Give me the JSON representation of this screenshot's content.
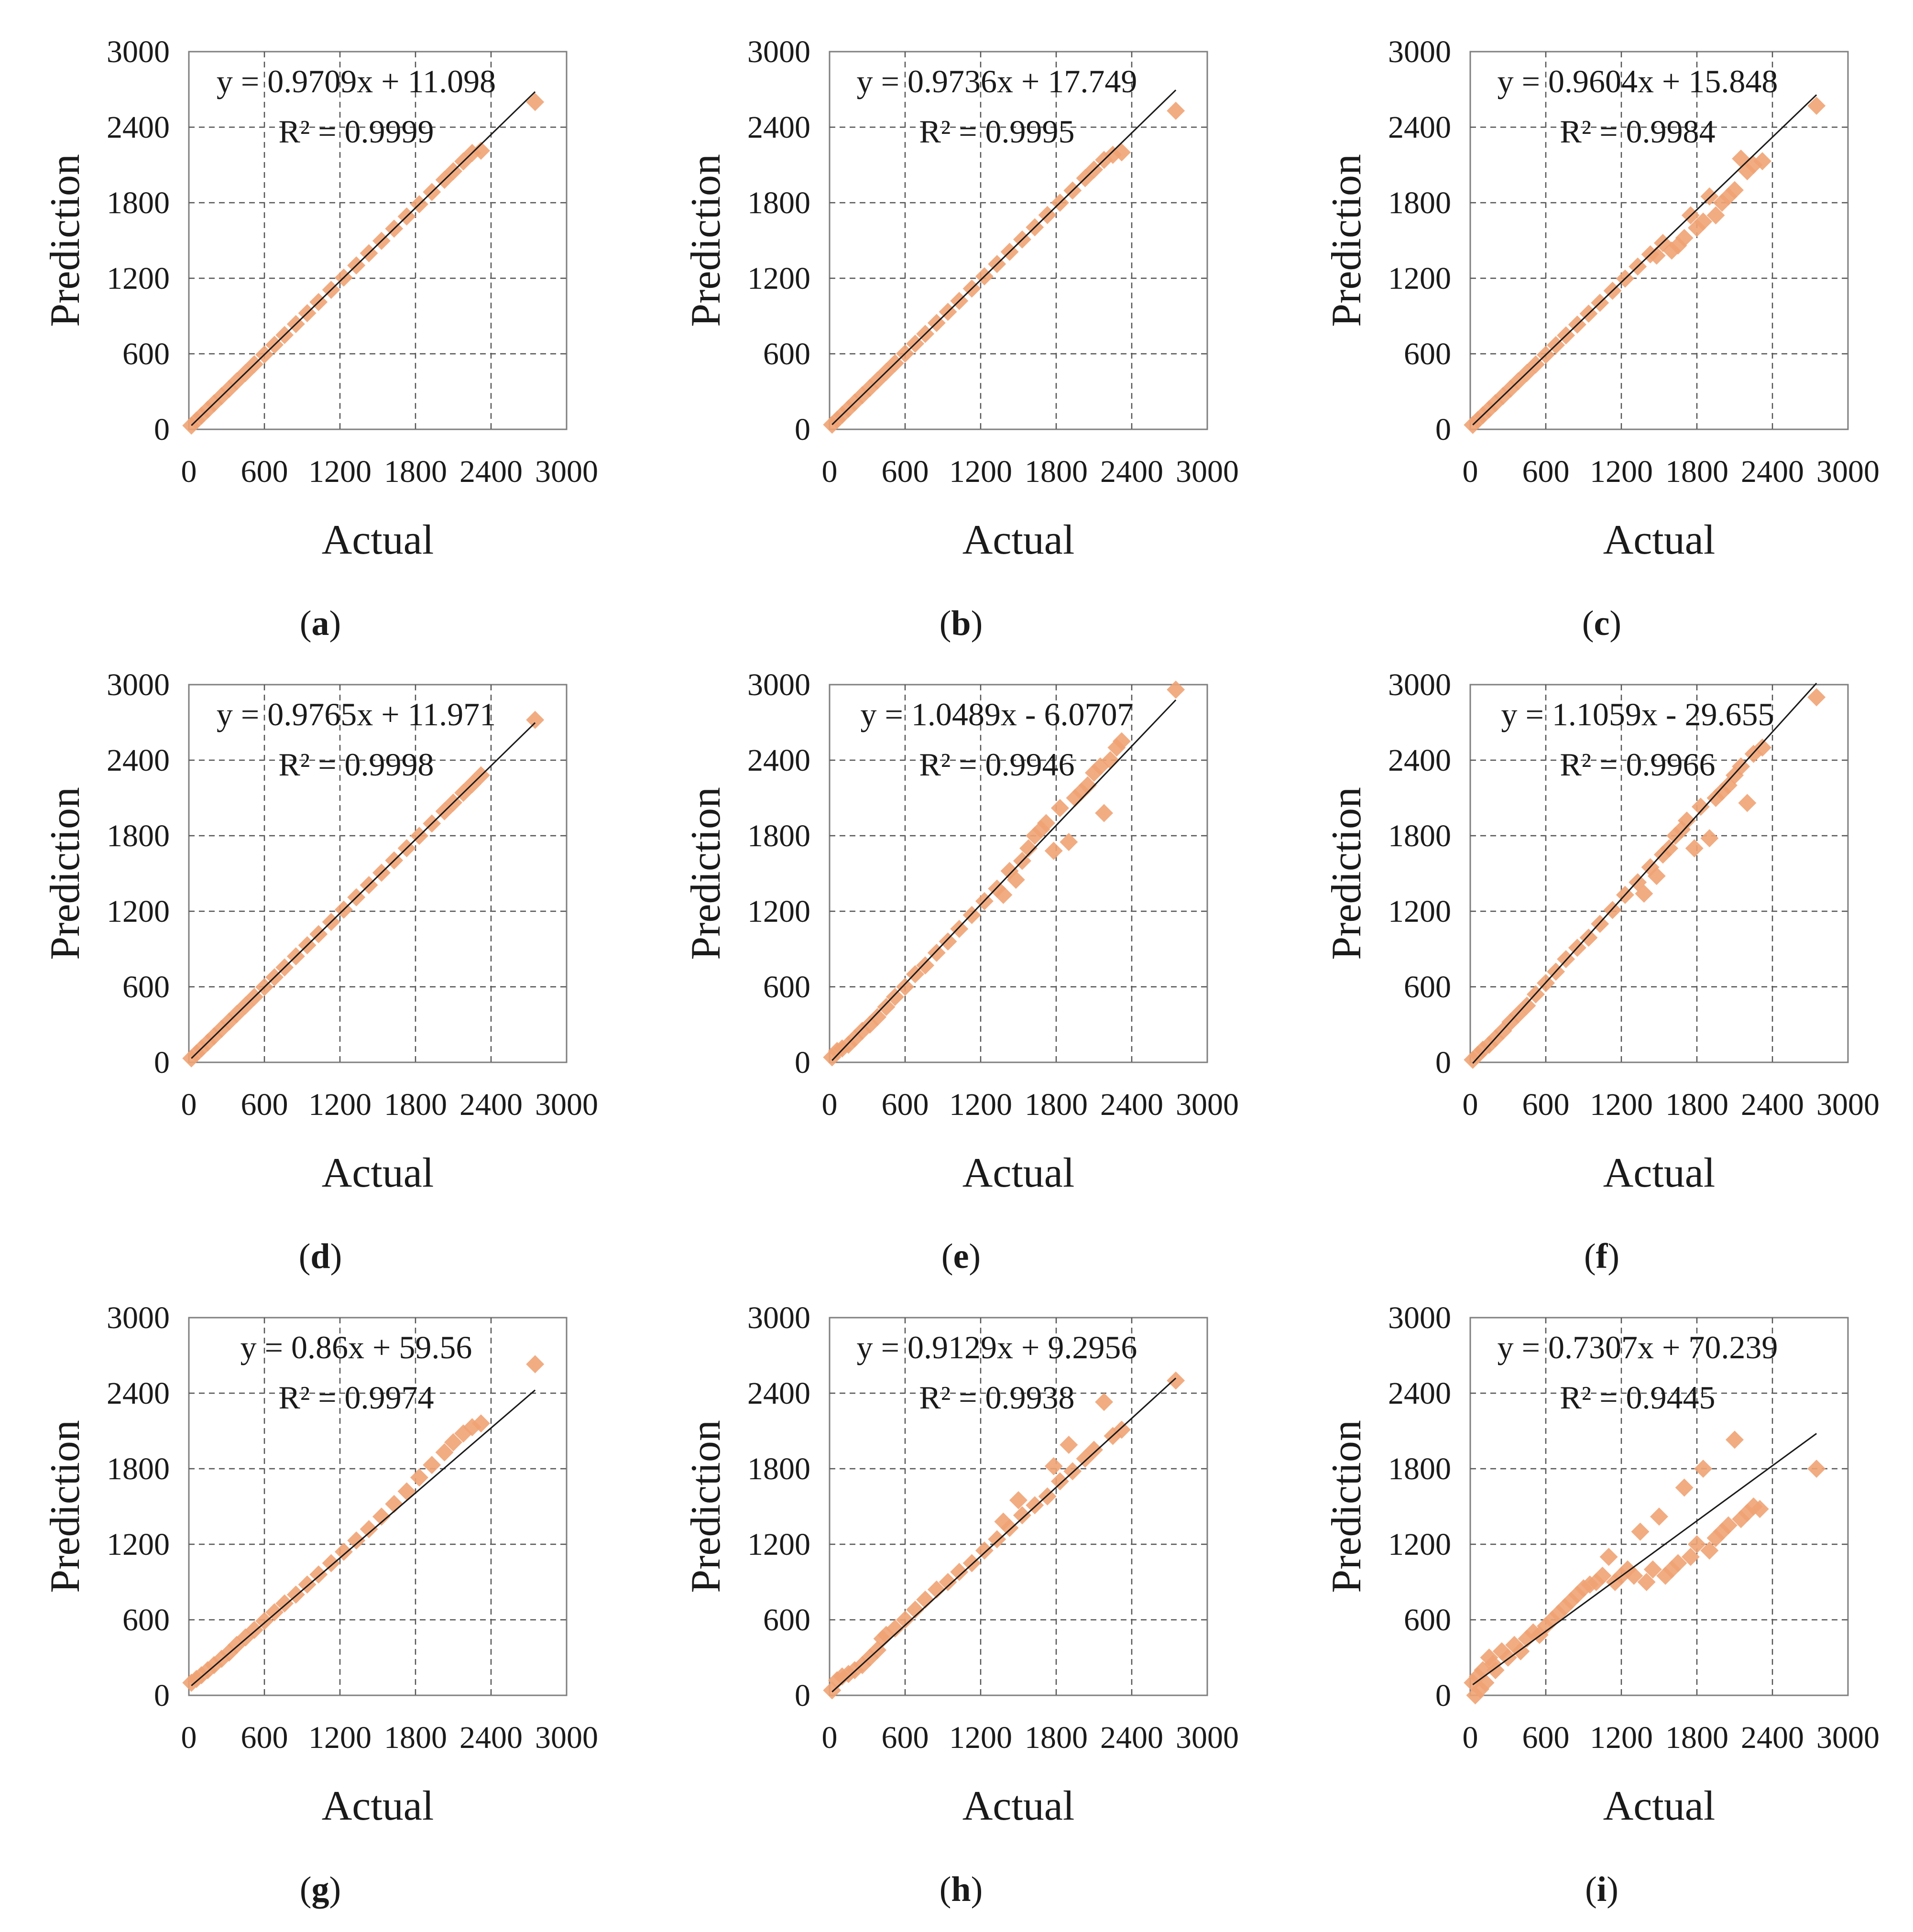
{
  "chart_data": [
    {
      "type": "scatter",
      "panel": "(a)",
      "panel_letter": "a",
      "xlabel": "Actual",
      "ylabel": "Prediction",
      "xlim": [
        0,
        3000
      ],
      "ylim": [
        0,
        3000
      ],
      "ticks": [
        "0",
        "600",
        "1200",
        "1800",
        "2400",
        "3000"
      ],
      "equation": "y = 0.9709x + 11.098",
      "r2": "R² = 0.9999",
      "grid": "dashed, both axes",
      "trendline": {
        "slope": 0.9709,
        "intercept": 11.098
      },
      "series": [
        {
          "color": "#f0a374",
          "marker": "diamond",
          "x": [
            20,
            60,
            100,
            150,
            200,
            260,
            320,
            380,
            450,
            520,
            600,
            680,
            760,
            850,
            940,
            1030,
            1130,
            1230,
            1330,
            1430,
            1530,
            1630,
            1730,
            1830,
            1930,
            2030,
            2100,
            2180,
            2250,
            2320,
            2750
          ],
          "y": [
            30,
            70,
            108,
            157,
            206,
            264,
            322,
            381,
            448,
            517,
            594,
            671,
            749,
            836,
            923,
            1011,
            1108,
            1205,
            1302,
            1399,
            1497,
            1594,
            1691,
            1788,
            1885,
            1982,
            2050,
            2128,
            2195,
            2213,
            2600
          ]
        }
      ]
    },
    {
      "type": "scatter",
      "panel": "(b)",
      "panel_letter": "b",
      "xlabel": "Actual",
      "ylabel": "Prediction",
      "xlim": [
        0,
        3000
      ],
      "ylim": [
        0,
        3000
      ],
      "ticks": [
        "0",
        "600",
        "1200",
        "1800",
        "2400",
        "3000"
      ],
      "equation": "y = 0.9736x + 17.749",
      "r2": "R² = 0.9995",
      "grid": "dashed, both axes",
      "trendline": {
        "slope": 0.9736,
        "intercept": 17.749
      },
      "series": [
        {
          "color": "#f0a374",
          "marker": "diamond",
          "x": [
            20,
            60,
            100,
            150,
            200,
            260,
            320,
            380,
            450,
            520,
            600,
            680,
            760,
            850,
            940,
            1030,
            1130,
            1230,
            1330,
            1430,
            1530,
            1630,
            1730,
            1830,
            1930,
            2030,
            2100,
            2180,
            2250,
            2320,
            2750
          ],
          "y": [
            37,
            76,
            115,
            164,
            213,
            271,
            329,
            388,
            456,
            525,
            602,
            680,
            758,
            845,
            933,
            1020,
            1118,
            1215,
            1313,
            1410,
            1508,
            1605,
            1702,
            1800,
            1897,
            1995,
            2063,
            2140,
            2180,
            2200,
            2530
          ]
        }
      ]
    },
    {
      "type": "scatter",
      "panel": "(c)",
      "panel_letter": "c",
      "xlabel": "Actual",
      "ylabel": "Prediction",
      "xlim": [
        0,
        3000
      ],
      "ylim": [
        0,
        3000
      ],
      "ticks": [
        "0",
        "600",
        "1200",
        "1800",
        "2400",
        "3000"
      ],
      "equation": "y = 0.9604x + 15.848",
      "r2": "R² = 0.9984",
      "grid": "dashed, both axes",
      "trendline": {
        "slope": 0.9604,
        "intercept": 15.848
      },
      "series": [
        {
          "color": "#f0a374",
          "marker": "diamond",
          "x": [
            20,
            60,
            100,
            150,
            200,
            260,
            320,
            380,
            450,
            520,
            600,
            680,
            760,
            850,
            940,
            1030,
            1130,
            1230,
            1330,
            1430,
            1480,
            1530,
            1600,
            1650,
            1700,
            1750,
            1800,
            1850,
            1900,
            1950,
            2000,
            2050,
            2100,
            2150,
            2200,
            2250,
            2320,
            2750
          ],
          "y": [
            35,
            74,
            112,
            160,
            208,
            265,
            323,
            381,
            448,
            515,
            592,
            669,
            746,
            832,
            919,
            1005,
            1101,
            1197,
            1293,
            1390,
            1380,
            1480,
            1420,
            1460,
            1520,
            1700,
            1600,
            1650,
            1850,
            1700,
            1800,
            1850,
            1900,
            2150,
            2050,
            2100,
            2130,
            2570
          ]
        }
      ]
    },
    {
      "type": "scatter",
      "panel": "(d)",
      "panel_letter": "d",
      "xlabel": "Actual",
      "ylabel": "Prediction",
      "xlim": [
        0,
        3000
      ],
      "ylim": [
        0,
        3000
      ],
      "ticks": [
        "0",
        "600",
        "1200",
        "1800",
        "2400",
        "3000"
      ],
      "equation": "y = 0.9765x + 11.971",
      "r2": "R² = 0.9998",
      "grid": "dashed, both axes",
      "trendline": {
        "slope": 0.9765,
        "intercept": 11.971
      },
      "series": [
        {
          "color": "#f0a374",
          "marker": "diamond",
          "x": [
            20,
            60,
            100,
            150,
            200,
            260,
            320,
            380,
            450,
            520,
            600,
            680,
            760,
            850,
            940,
            1030,
            1130,
            1230,
            1330,
            1430,
            1530,
            1630,
            1730,
            1830,
            1930,
            2030,
            2100,
            2180,
            2250,
            2320,
            2750
          ],
          "y": [
            32,
            71,
            110,
            158,
            207,
            266,
            324,
            383,
            451,
            520,
            598,
            676,
            754,
            842,
            930,
            1018,
            1115,
            1213,
            1311,
            1408,
            1506,
            1604,
            1701,
            1799,
            1897,
            1994,
            2063,
            2141,
            2209,
            2280,
            2720
          ]
        }
      ]
    },
    {
      "type": "scatter",
      "panel": "(e)",
      "panel_letter": "e",
      "xlabel": "Actual",
      "ylabel": "Prediction",
      "xlim": [
        0,
        3000
      ],
      "ylim": [
        0,
        3000
      ],
      "ticks": [
        "0",
        "600",
        "1200",
        "1800",
        "2400",
        "3000"
      ],
      "equation": "y = 1.0489x - 6.0707",
      "r2": "R² = 0.9946",
      "grid": "dashed, both axes",
      "trendline": {
        "slope": 1.0489,
        "intercept": -6.0707
      },
      "series": [
        {
          "color": "#f0a374",
          "marker": "diamond",
          "x": [
            20,
            60,
            100,
            150,
            200,
            260,
            320,
            380,
            450,
            520,
            600,
            680,
            760,
            850,
            940,
            1030,
            1130,
            1230,
            1330,
            1380,
            1430,
            1480,
            1530,
            1580,
            1630,
            1680,
            1720,
            1780,
            1830,
            1900,
            1950,
            2000,
            2050,
            2100,
            2150,
            2180,
            2230,
            2280,
            2320,
            2750
          ],
          "y": [
            40,
            90,
            110,
            140,
            190,
            250,
            300,
            360,
            440,
            520,
            600,
            700,
            770,
            870,
            960,
            1060,
            1170,
            1280,
            1380,
            1330,
            1520,
            1450,
            1600,
            1700,
            1800,
            1850,
            1900,
            1680,
            2020,
            1750,
            2100,
            2150,
            2200,
            2300,
            2350,
            1980,
            2400,
            2500,
            2550,
            2960
          ]
        }
      ]
    },
    {
      "type": "scatter",
      "panel": "(f)",
      "panel_letter": "f",
      "xlabel": "Actual",
      "ylabel": "Prediction",
      "xlim": [
        0,
        3000
      ],
      "ylim": [
        0,
        3000
      ],
      "ticks": [
        "0",
        "600",
        "1200",
        "1800",
        "2400",
        "3000"
      ],
      "equation": "y = 1.1059x - 29.655",
      "r2": "R² = 0.9966",
      "grid": "dashed, both axes",
      "trendline": {
        "slope": 1.1059,
        "intercept": -29.655
      },
      "series": [
        {
          "color": "#f0a374",
          "marker": "diamond",
          "x": [
            20,
            60,
            100,
            150,
            200,
            260,
            320,
            380,
            450,
            520,
            600,
            680,
            760,
            850,
            940,
            1030,
            1130,
            1230,
            1330,
            1380,
            1430,
            1480,
            1530,
            1580,
            1630,
            1680,
            1720,
            1780,
            1830,
            1900,
            1950,
            2000,
            2050,
            2100,
            2150,
            2200,
            2250,
            2320,
            2750
          ],
          "y": [
            20,
            60,
            100,
            140,
            190,
            250,
            320,
            380,
            450,
            540,
            630,
            720,
            820,
            910,
            990,
            1100,
            1210,
            1330,
            1430,
            1340,
            1550,
            1480,
            1650,
            1700,
            1800,
            1850,
            1920,
            1700,
            2030,
            1780,
            2100,
            2150,
            2200,
            2280,
            2350,
            2060,
            2450,
            2500,
            2900
          ]
        }
      ]
    },
    {
      "type": "scatter",
      "panel": "(g)",
      "panel_letter": "g",
      "xlabel": "Actual",
      "ylabel": "Prediction",
      "xlim": [
        0,
        3000
      ],
      "ylim": [
        0,
        3000
      ],
      "ticks": [
        "0",
        "600",
        "1200",
        "1800",
        "2400",
        "3000"
      ],
      "equation": "y = 0.86x + 59.56",
      "r2": "R² = 0.9974",
      "grid": "dashed, both axes",
      "trendline": {
        "slope": 0.86,
        "intercept": 59.56
      },
      "series": [
        {
          "color": "#f0a374",
          "marker": "diamond",
          "x": [
            20,
            60,
            100,
            150,
            200,
            260,
            320,
            380,
            450,
            520,
            600,
            680,
            760,
            850,
            940,
            1030,
            1130,
            1230,
            1330,
            1430,
            1530,
            1630,
            1730,
            1830,
            1930,
            2030,
            2100,
            2180,
            2250,
            2320,
            2750
          ],
          "y": [
            100,
            130,
            160,
            200,
            240,
            290,
            340,
            400,
            460,
            520,
            590,
            660,
            730,
            800,
            880,
            960,
            1050,
            1140,
            1230,
            1320,
            1420,
            1520,
            1620,
            1730,
            1830,
            1930,
            2010,
            2080,
            2130,
            2160,
            2630
          ]
        }
      ]
    },
    {
      "type": "scatter",
      "panel": "(h)",
      "panel_letter": "h",
      "xlabel": "Actual",
      "ylabel": "Prediction",
      "xlim": [
        0,
        3000
      ],
      "ylim": [
        0,
        3000
      ],
      "ticks": [
        "0",
        "600",
        "1200",
        "1800",
        "2400",
        "3000"
      ],
      "equation": "y = 0.9129x + 9.2956",
      "r2": "R² = 0.9938",
      "grid": "dashed, both axes",
      "trendline": {
        "slope": 0.9129,
        "intercept": 9.2956
      },
      "series": [
        {
          "color": "#f0a374",
          "marker": "diamond",
          "x": [
            20,
            60,
            100,
            150,
            200,
            260,
            320,
            380,
            420,
            450,
            520,
            600,
            680,
            760,
            850,
            940,
            1030,
            1130,
            1230,
            1330,
            1380,
            1430,
            1500,
            1530,
            1630,
            1730,
            1780,
            1830,
            1900,
            1930,
            2030,
            2100,
            2180,
            2250,
            2320,
            2750
          ],
          "y": [
            40,
            120,
            150,
            170,
            200,
            240,
            300,
            360,
            450,
            480,
            530,
            600,
            680,
            760,
            840,
            900,
            980,
            1050,
            1150,
            1240,
            1380,
            1330,
            1550,
            1430,
            1510,
            1580,
            1820,
            1700,
            1990,
            1780,
            1880,
            1950,
            2330,
            2060,
            2110,
            2500
          ]
        }
      ]
    },
    {
      "type": "scatter",
      "panel": "(i)",
      "panel_letter": "i",
      "xlabel": "Actual",
      "ylabel": "Prediction",
      "xlim": [
        0,
        3000
      ],
      "ylim": [
        0,
        3000
      ],
      "ticks": [
        "0",
        "600",
        "1200",
        "1800",
        "2400",
        "3000"
      ],
      "equation": "y = 0.7307x + 70.239",
      "r2": "R² = 0.9445",
      "grid": "dashed, both axes",
      "trendline": {
        "slope": 0.7307,
        "intercept": 70.239
      },
      "series": [
        {
          "color": "#f0a374",
          "marker": "diamond",
          "x": [
            20,
            40,
            60,
            80,
            100,
            120,
            150,
            180,
            200,
            250,
            300,
            350,
            400,
            450,
            500,
            550,
            600,
            650,
            700,
            750,
            800,
            850,
            900,
            950,
            1000,
            1050,
            1100,
            1150,
            1200,
            1250,
            1300,
            1350,
            1400,
            1450,
            1500,
            1550,
            1600,
            1650,
            1700,
            1750,
            1800,
            1850,
            1900,
            1950,
            2000,
            2050,
            2100,
            2150,
            2200,
            2250,
            2300,
            2750
          ],
          "y": [
            100,
            0,
            150,
            50,
            200,
            100,
            300,
            250,
            200,
            350,
            300,
            400,
            350,
            450,
            500,
            480,
            550,
            600,
            650,
            700,
            750,
            800,
            850,
            880,
            900,
            950,
            1100,
            900,
            950,
            1000,
            950,
            1300,
            900,
            1000,
            1420,
            950,
            1000,
            1050,
            1650,
            1100,
            1200,
            1800,
            1150,
            1250,
            1300,
            1350,
            2030,
            1400,
            1450,
            1500,
            1480,
            1800
          ]
        }
      ]
    }
  ]
}
